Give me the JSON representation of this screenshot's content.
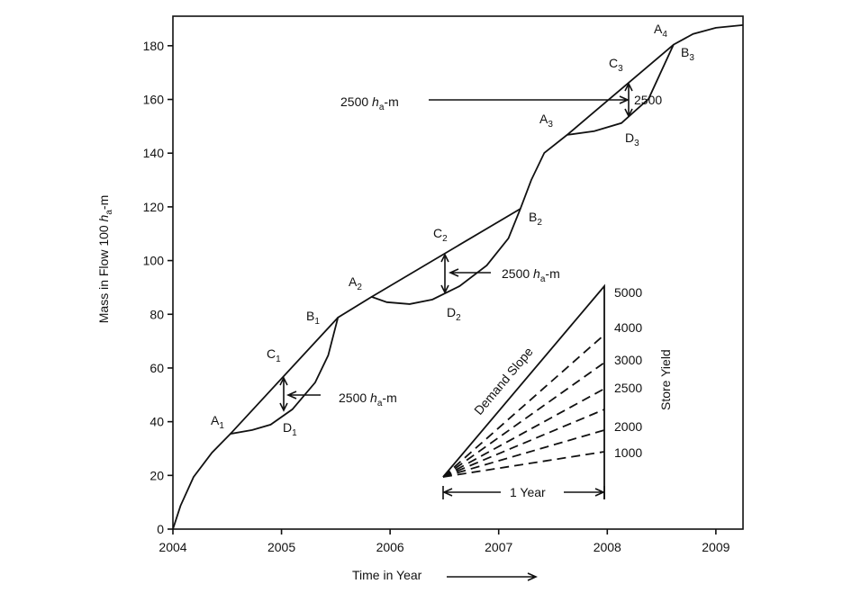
{
  "chart_data": {
    "type": "line",
    "x_label": "Time in Year",
    "y_label": {
      "pre": "Mass in Flow 100 ",
      "it": "h",
      "sub": "a",
      "post": "-m"
    },
    "xlim": [
      2004,
      2009.25
    ],
    "ylim": [
      0,
      191
    ],
    "xticks": [
      2004,
      2005,
      2006,
      2007,
      2008,
      2009
    ],
    "yticks": [
      0,
      20,
      40,
      60,
      80,
      100,
      120,
      140,
      160,
      180
    ],
    "series": [
      {
        "color": "#111111",
        "x": [
          2004.0,
          2004.07,
          2004.19,
          2004.36,
          2004.53,
          2004.73,
          2004.9,
          2005.1,
          2005.31,
          2005.43,
          2005.52,
          2005.83,
          2005.97,
          2006.18,
          2006.39,
          2006.64,
          2006.89,
          2007.09,
          2007.2,
          2007.3,
          2007.42,
          2007.63,
          2007.88,
          2008.13,
          2008.38,
          2008.61,
          2008.79,
          2009.0,
          2009.25
        ],
        "values": [
          0,
          8.7,
          19.4,
          28.5,
          35.5,
          36.9,
          38.9,
          44.6,
          54.6,
          64.7,
          78.8,
          86.5,
          84.5,
          83.8,
          85.5,
          90.5,
          98.2,
          108.3,
          119.3,
          130,
          140.1,
          146.8,
          148.2,
          151.2,
          160.2,
          180.4,
          184.4,
          186.7,
          187.7
        ]
      },
      {
        "color": "#111111",
        "x": [
          2004.53,
          2005.52
        ],
        "values": [
          35.5,
          78.8
        ]
      },
      {
        "color": "#111111",
        "x": [
          2005.83,
          2007.2
        ],
        "values": [
          86.5,
          119.3
        ]
      },
      {
        "color": "#111111",
        "x": [
          2007.63,
          2008.61
        ],
        "values": [
          146.8,
          180.4
        ]
      }
    ]
  },
  "annotations": {
    "points": [
      {
        "main": "A",
        "sub": "1"
      },
      {
        "main": "C",
        "sub": "1"
      },
      {
        "main": "D",
        "sub": "1"
      },
      {
        "main": "B",
        "sub": "1"
      },
      {
        "main": "A",
        "sub": "2"
      },
      {
        "main": "C",
        "sub": "2"
      },
      {
        "main": "D",
        "sub": "2"
      },
      {
        "main": "B",
        "sub": "2"
      },
      {
        "main": "A",
        "sub": "3"
      },
      {
        "main": "C",
        "sub": "3"
      },
      {
        "main": "D",
        "sub": "3"
      },
      {
        "main": "B",
        "sub": "3"
      },
      {
        "main": "A",
        "sub": "4"
      }
    ],
    "storage": [
      {
        "pre": "2500 ",
        "it": "h",
        "sub": "a",
        "post": "-m"
      },
      {
        "pre": "2500 ",
        "it": "h",
        "sub": "a",
        "post": "-m"
      },
      {
        "pre": "2500 ",
        "it": "h",
        "sub": "a",
        "post": "-m"
      }
    ],
    "storage_short": "2500"
  },
  "inset": {
    "demand_label": "Demand Slope",
    "yield_label": "Store Yield",
    "period": "1 Year",
    "yields": [
      "5000",
      "4000",
      "3000",
      "2500",
      "2000",
      "1000"
    ]
  }
}
